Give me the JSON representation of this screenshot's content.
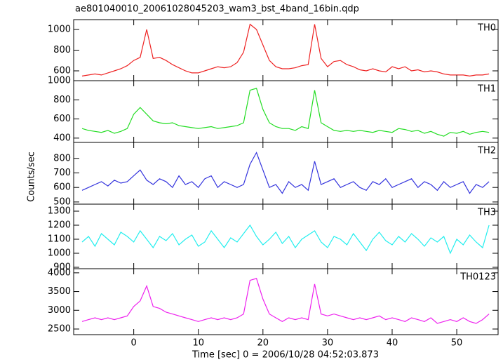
{
  "title": "ae801040010_20061028045203_wam3_bst_4band_16bin.qdp",
  "ylabel": "Counts/sec",
  "xlabel": "Time [sec] 0 = 2006/10/28 04:52:03.873",
  "chart_data": [
    {
      "type": "line",
      "label": "TH0",
      "color": "#ee2222",
      "x": [
        -8,
        -7,
        -6,
        -5,
        -4,
        -3,
        -2,
        -1,
        0,
        1,
        2,
        3,
        4,
        5,
        6,
        7,
        8,
        9,
        10,
        11,
        12,
        13,
        14,
        15,
        16,
        17,
        18,
        19,
        20,
        21,
        22,
        23,
        24,
        25,
        26,
        27,
        28,
        29,
        30,
        31,
        32,
        33,
        34,
        35,
        36,
        37,
        38,
        39,
        40,
        41,
        42,
        43,
        44,
        45,
        46,
        47,
        48,
        49,
        50,
        51,
        52,
        53,
        54,
        55
      ],
      "values": [
        550,
        560,
        570,
        560,
        580,
        600,
        620,
        650,
        700,
        730,
        1000,
        720,
        730,
        700,
        660,
        630,
        600,
        580,
        580,
        600,
        620,
        640,
        630,
        640,
        680,
        780,
        1050,
        1000,
        850,
        700,
        640,
        620,
        620,
        630,
        650,
        660,
        1050,
        720,
        640,
        690,
        700,
        660,
        640,
        610,
        600,
        620,
        600,
        590,
        640,
        620,
        640,
        600,
        610,
        590,
        600,
        590,
        570,
        560,
        560,
        560,
        550,
        560,
        560,
        570
      ],
      "xlim": [
        -9.3,
        56.4
      ],
      "xticks": [
        0,
        10,
        20,
        30,
        40,
        50
      ],
      "ylim": [
        505,
        1095
      ],
      "yticks": [
        600,
        800,
        1000
      ]
    },
    {
      "type": "line",
      "label": "TH1",
      "color": "#22dd22",
      "x": [
        -8,
        -7,
        -6,
        -5,
        -4,
        -3,
        -2,
        -1,
        0,
        1,
        2,
        3,
        4,
        5,
        6,
        7,
        8,
        9,
        10,
        11,
        12,
        13,
        14,
        15,
        16,
        17,
        18,
        19,
        20,
        21,
        22,
        23,
        24,
        25,
        26,
        27,
        28,
        29,
        30,
        31,
        32,
        33,
        34,
        35,
        36,
        37,
        38,
        39,
        40,
        41,
        42,
        43,
        44,
        45,
        46,
        47,
        48,
        49,
        50,
        51,
        52,
        53,
        54,
        55
      ],
      "values": [
        500,
        480,
        470,
        460,
        480,
        450,
        470,
        500,
        650,
        720,
        650,
        580,
        560,
        550,
        560,
        530,
        520,
        510,
        500,
        510,
        520,
        500,
        510,
        520,
        530,
        560,
        900,
        920,
        700,
        560,
        520,
        500,
        500,
        480,
        520,
        500,
        900,
        560,
        520,
        480,
        470,
        480,
        470,
        480,
        470,
        460,
        480,
        470,
        460,
        500,
        490,
        470,
        480,
        450,
        470,
        440,
        420,
        460,
        450,
        470,
        440,
        460,
        470,
        460
      ],
      "xlim": [
        -9.3,
        56.4
      ],
      "xticks": [
        0,
        10,
        20,
        30,
        40,
        50
      ],
      "ylim": [
        355,
        1000
      ],
      "yticks": [
        400,
        600,
        800,
        1000
      ]
    },
    {
      "type": "line",
      "label": "TH2",
      "color": "#3333dd",
      "x": [
        -8,
        -7,
        -6,
        -5,
        -4,
        -3,
        -2,
        -1,
        0,
        1,
        2,
        3,
        4,
        5,
        6,
        7,
        8,
        9,
        10,
        11,
        12,
        13,
        14,
        15,
        16,
        17,
        18,
        19,
        20,
        21,
        22,
        23,
        24,
        25,
        26,
        27,
        28,
        29,
        30,
        31,
        32,
        33,
        34,
        35,
        36,
        37,
        38,
        39,
        40,
        41,
        42,
        43,
        44,
        45,
        46,
        47,
        48,
        49,
        50,
        51,
        52,
        53,
        54,
        55
      ],
      "values": [
        580,
        600,
        620,
        640,
        610,
        650,
        630,
        640,
        680,
        720,
        650,
        620,
        660,
        640,
        600,
        680,
        620,
        640,
        600,
        660,
        680,
        600,
        640,
        620,
        600,
        620,
        760,
        840,
        720,
        600,
        620,
        560,
        640,
        600,
        620,
        580,
        780,
        620,
        640,
        660,
        600,
        620,
        640,
        600,
        580,
        640,
        620,
        660,
        600,
        620,
        640,
        660,
        600,
        640,
        620,
        580,
        640,
        600,
        620,
        640,
        560,
        620,
        600,
        640
      ],
      "xlim": [
        -9.3,
        56.4
      ],
      "xticks": [
        0,
        10,
        20,
        30,
        40,
        50
      ],
      "ylim": [
        485,
        910
      ],
      "yticks": [
        500,
        600,
        700,
        800
      ]
    },
    {
      "type": "line",
      "label": "TH3",
      "color": "#22eeee",
      "x": [
        -8,
        -7,
        -6,
        -5,
        -4,
        -3,
        -2,
        -1,
        0,
        1,
        2,
        3,
        4,
        5,
        6,
        7,
        8,
        9,
        10,
        11,
        12,
        13,
        14,
        15,
        16,
        17,
        18,
        19,
        20,
        21,
        22,
        23,
        24,
        25,
        26,
        27,
        28,
        29,
        30,
        31,
        32,
        33,
        34,
        35,
        36,
        37,
        38,
        39,
        40,
        41,
        42,
        43,
        44,
        45,
        46,
        47,
        48,
        49,
        50,
        51,
        52,
        53,
        54,
        55
      ],
      "values": [
        1080,
        1120,
        1050,
        1140,
        1100,
        1060,
        1150,
        1120,
        1080,
        1160,
        1100,
        1040,
        1120,
        1090,
        1140,
        1060,
        1100,
        1130,
        1050,
        1080,
        1160,
        1100,
        1040,
        1110,
        1080,
        1140,
        1200,
        1120,
        1060,
        1100,
        1150,
        1070,
        1120,
        1040,
        1100,
        1130,
        1160,
        1080,
        1040,
        1120,
        1100,
        1060,
        1140,
        1080,
        1020,
        1100,
        1150,
        1090,
        1060,
        1120,
        1080,
        1140,
        1100,
        1050,
        1110,
        1080,
        1120,
        1000,
        1100,
        1060,
        1130,
        1080,
        1040,
        1200
      ],
      "xlim": [
        -9.3,
        56.4
      ],
      "xticks": [
        0,
        10,
        20,
        30,
        40,
        50
      ],
      "ylim": [
        890,
        1350
      ],
      "yticks": [
        900,
        1000,
        1100,
        1200,
        1300
      ]
    },
    {
      "type": "line",
      "label": "TH0123",
      "color": "#ee22ee",
      "x": [
        -8,
        -7,
        -6,
        -5,
        -4,
        -3,
        -2,
        -1,
        0,
        1,
        2,
        3,
        4,
        5,
        6,
        7,
        8,
        9,
        10,
        11,
        12,
        13,
        14,
        15,
        16,
        17,
        18,
        19,
        20,
        21,
        22,
        23,
        24,
        25,
        26,
        27,
        28,
        29,
        30,
        31,
        32,
        33,
        34,
        35,
        36,
        37,
        38,
        39,
        40,
        41,
        42,
        43,
        44,
        45,
        46,
        47,
        48,
        49,
        50,
        51,
        52,
        53,
        54,
        55
      ],
      "values": [
        2700,
        2750,
        2800,
        2750,
        2800,
        2750,
        2800,
        2850,
        3100,
        3250,
        3650,
        3100,
        3050,
        2950,
        2900,
        2850,
        2800,
        2750,
        2700,
        2750,
        2800,
        2750,
        2800,
        2750,
        2800,
        2900,
        3800,
        3850,
        3300,
        2900,
        2800,
        2700,
        2800,
        2750,
        2800,
        2750,
        3700,
        2900,
        2850,
        2900,
        2850,
        2800,
        2750,
        2800,
        2750,
        2800,
        2850,
        2750,
        2800,
        2750,
        2700,
        2800,
        2750,
        2700,
        2800,
        2650,
        2700,
        2750,
        2700,
        2800,
        2700,
        2650,
        2750,
        2900
      ],
      "xlim": [
        -9.3,
        56.4
      ],
      "xticks": [
        0,
        10,
        20,
        30,
        40,
        50
      ],
      "ylim": [
        2350,
        4110
      ],
      "yticks": [
        2500,
        3000,
        3500,
        4000
      ]
    }
  ]
}
